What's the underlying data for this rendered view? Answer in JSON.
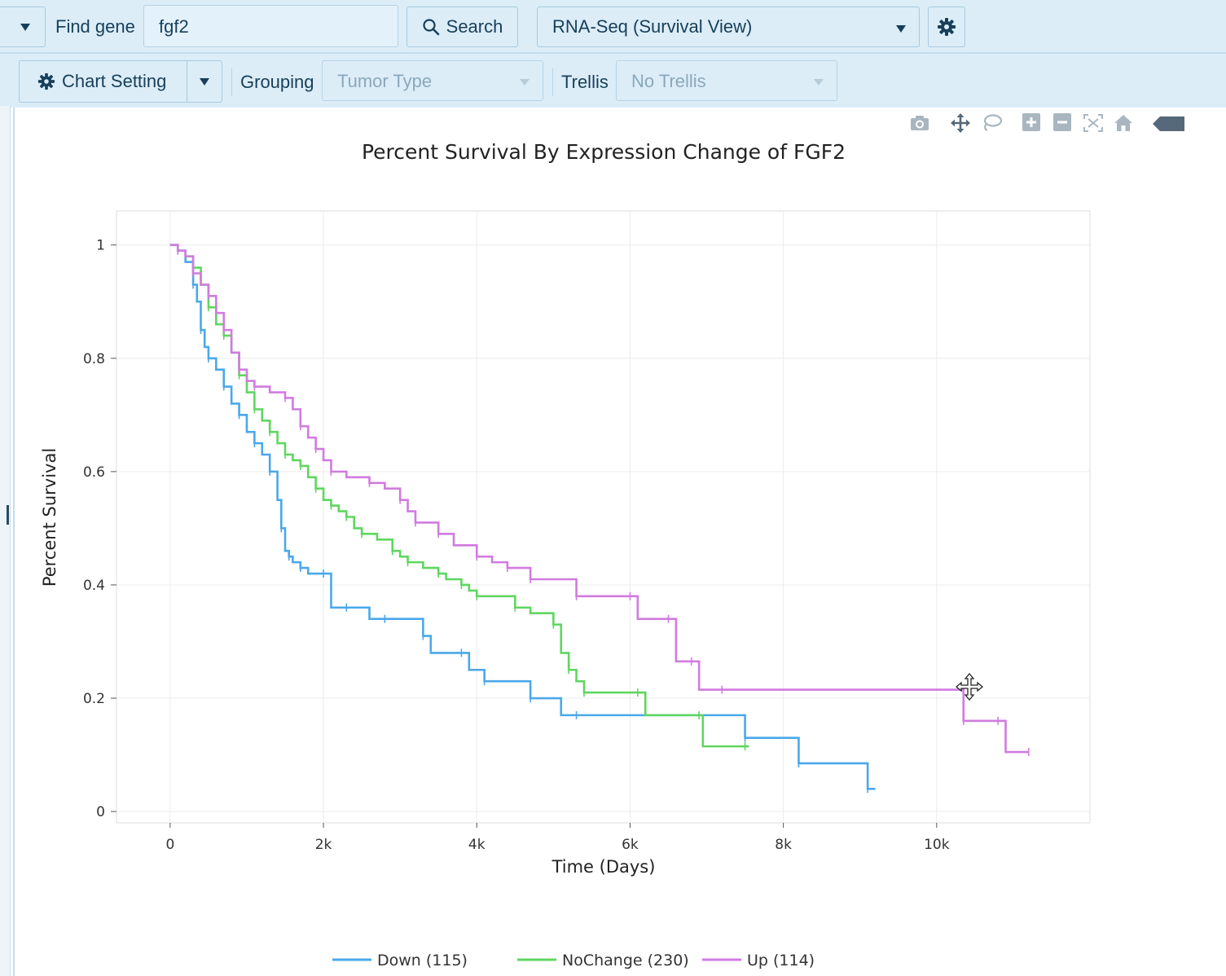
{
  "toolbar": {
    "find_gene_label": "Find gene",
    "gene_input_value": "fgf2",
    "search_label": "Search",
    "view_select_value": "RNA-Seq (Survival View)"
  },
  "subbar": {
    "chart_setting_label": "Chart Setting",
    "grouping_label": "Grouping",
    "grouping_value": "Tumor Type",
    "trellis_label": "Trellis",
    "trellis_value": "No Trellis"
  },
  "modebar_icons": [
    "camera-icon",
    "pan-icon",
    "lasso-icon",
    "zoom-in-icon",
    "zoom-out-icon",
    "autoscale-icon",
    "home-icon",
    "plotly-logo-icon"
  ],
  "chart_data": {
    "type": "line",
    "title": "Percent Survival By Expression Change of FGF2",
    "xlabel": "Time (Days)",
    "ylabel": "Percent Survival",
    "xlim": [
      -700,
      12000
    ],
    "ylim": [
      -0.02,
      1.06
    ],
    "xticks": [
      0,
      2000,
      4000,
      6000,
      8000,
      10000
    ],
    "xtick_labels": [
      "0",
      "2k",
      "4k",
      "6k",
      "8k",
      "10k"
    ],
    "yticks": [
      0,
      0.2,
      0.4,
      0.6,
      0.8,
      1
    ],
    "ytick_labels": [
      "0",
      "0.2",
      "0.4",
      "0.6",
      "0.8",
      "1"
    ],
    "grid": true,
    "legend_position": "bottom",
    "series": [
      {
        "name": "Down (115)",
        "color": "#4aa8ea",
        "x": [
          0,
          100,
          200,
          300,
          350,
          400,
          450,
          500,
          600,
          700,
          800,
          900,
          1000,
          1100,
          1200,
          1300,
          1400,
          1450,
          1500,
          1550,
          1600,
          1700,
          1800,
          2000,
          2100,
          2300,
          2600,
          2800,
          3000,
          3300,
          3400,
          3800,
          3900,
          4100,
          4500,
          4700,
          5100,
          5300,
          6900,
          7500,
          8000,
          8200,
          8600,
          9100,
          9200
        ],
        "y": [
          1,
          0.99,
          0.97,
          0.93,
          0.9,
          0.85,
          0.82,
          0.8,
          0.78,
          0.75,
          0.72,
          0.7,
          0.67,
          0.65,
          0.63,
          0.6,
          0.55,
          0.5,
          0.46,
          0.45,
          0.44,
          0.43,
          0.42,
          0.42,
          0.36,
          0.36,
          0.34,
          0.34,
          0.34,
          0.31,
          0.28,
          0.28,
          0.25,
          0.23,
          0.23,
          0.2,
          0.17,
          0.17,
          0.17,
          0.13,
          0.13,
          0.085,
          0.085,
          0.04,
          0.04
        ]
      },
      {
        "name": "NoChange (230)",
        "color": "#5fd65f",
        "x": [
          0,
          100,
          200,
          300,
          400,
          500,
          600,
          700,
          800,
          900,
          1000,
          1100,
          1200,
          1300,
          1400,
          1500,
          1600,
          1700,
          1800,
          1900,
          2000,
          2100,
          2200,
          2300,
          2400,
          2500,
          2700,
          2900,
          3000,
          3100,
          3300,
          3500,
          3600,
          3800,
          3900,
          4000,
          4400,
          4500,
          4700,
          5000,
          5100,
          5200,
          5300,
          5400,
          5600,
          6100,
          6200,
          6900,
          6950,
          7500,
          7550
        ],
        "y": [
          1,
          0.99,
          0.98,
          0.96,
          0.93,
          0.89,
          0.86,
          0.84,
          0.81,
          0.77,
          0.74,
          0.71,
          0.69,
          0.67,
          0.65,
          0.63,
          0.62,
          0.61,
          0.59,
          0.57,
          0.55,
          0.54,
          0.53,
          0.52,
          0.5,
          0.49,
          0.48,
          0.46,
          0.45,
          0.44,
          0.43,
          0.42,
          0.41,
          0.4,
          0.39,
          0.38,
          0.38,
          0.36,
          0.35,
          0.33,
          0.28,
          0.25,
          0.23,
          0.21,
          0.21,
          0.21,
          0.17,
          0.17,
          0.115,
          0.115,
          0.115
        ]
      },
      {
        "name": "Up (114)",
        "color": "#d17be0",
        "x": [
          0,
          100,
          200,
          300,
          400,
          500,
          600,
          700,
          800,
          900,
          1000,
          1100,
          1300,
          1500,
          1600,
          1700,
          1800,
          1900,
          2000,
          2100,
          2300,
          2600,
          2800,
          3000,
          3100,
          3200,
          3300,
          3500,
          3700,
          4000,
          4200,
          4400,
          4600,
          4700,
          5000,
          5300,
          5500,
          6000,
          6100,
          6500,
          6600,
          6800,
          6900,
          7200,
          10000,
          10350,
          10400,
          10800,
          10900,
          11200
        ],
        "y": [
          1,
          0.99,
          0.98,
          0.95,
          0.93,
          0.91,
          0.88,
          0.85,
          0.81,
          0.78,
          0.76,
          0.75,
          0.74,
          0.73,
          0.71,
          0.68,
          0.66,
          0.64,
          0.62,
          0.6,
          0.59,
          0.58,
          0.57,
          0.55,
          0.53,
          0.51,
          0.51,
          0.49,
          0.47,
          0.45,
          0.44,
          0.43,
          0.43,
          0.41,
          0.41,
          0.38,
          0.38,
          0.38,
          0.34,
          0.34,
          0.265,
          0.265,
          0.215,
          0.215,
          0.215,
          0.16,
          0.16,
          0.16,
          0.105,
          0.105
        ]
      }
    ]
  }
}
